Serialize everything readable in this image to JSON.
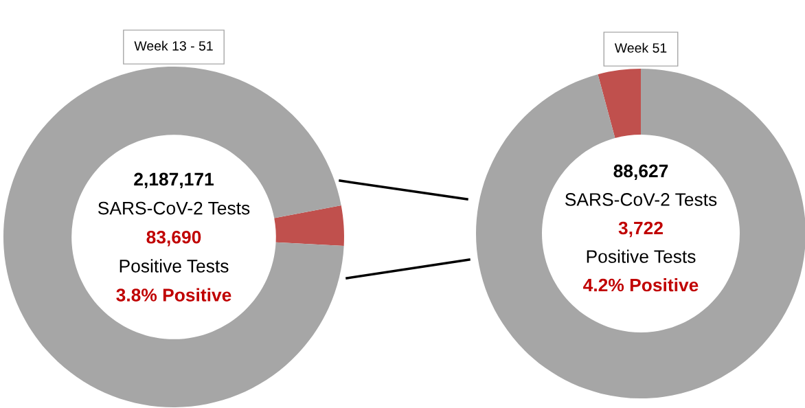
{
  "chart_data": [
    {
      "type": "donut",
      "title": "Week 13 - 51",
      "categories": [
        null,
        null
      ],
      "values": [
        3.8,
        96.2
      ],
      "colors": [
        "#c0504d",
        "#a6a6a6"
      ],
      "annotations": [
        "2,187,171",
        "SARS-CoV-2 Tests",
        "83,690",
        "Positive Tests",
        "3.8% Positive"
      ]
    },
    {
      "type": "donut",
      "title": "Week 51",
      "categories": [
        null,
        null
      ],
      "values": [
        4.2,
        95.8
      ],
      "colors": [
        "#c0504d",
        "#a6a6a6"
      ],
      "annotations": [
        "88,627",
        "SARS-CoV-2 Tests",
        "3,722",
        "Positive Tests",
        "4.2% Positive"
      ]
    }
  ]
}
